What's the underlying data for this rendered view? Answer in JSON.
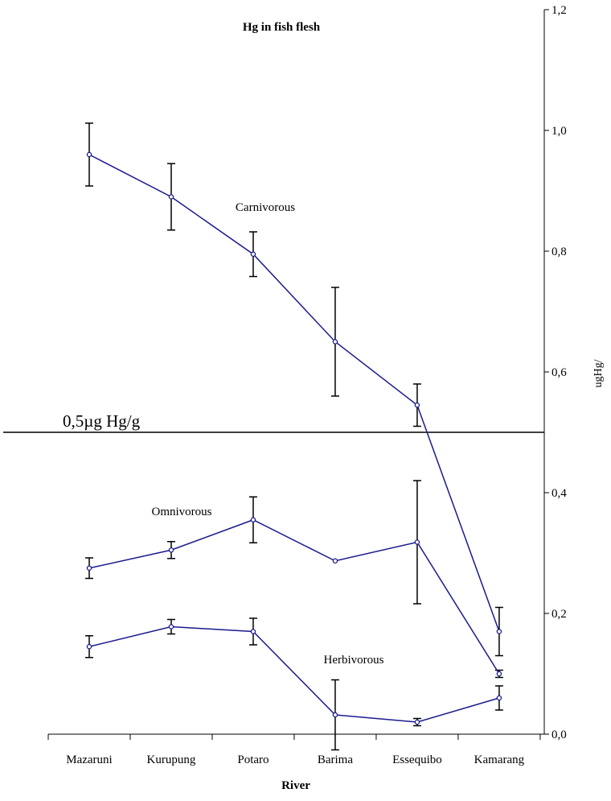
{
  "chart_data": {
    "type": "line",
    "title": "Hg in fish flesh",
    "xlabel": "River",
    "ylabel": "ugHg/",
    "categories": [
      "Mazaruni",
      "Kurupung",
      "Potaro",
      "Barima",
      "Essequibo",
      "Kamarang"
    ],
    "ylim": [
      0,
      1.2
    ],
    "yticks": [
      "0,0",
      "0,2",
      "0,4",
      "0,6",
      "0,8",
      "1,0",
      "1,2"
    ],
    "ytick_values": [
      0,
      0.2,
      0.4,
      0.6,
      0.8,
      1.0,
      1.2
    ],
    "y_axis_position": "right",
    "grid": false,
    "line_color": "#1a1a8c",
    "errorbar_color": "#000000",
    "reference_line": {
      "value": 0.5,
      "label": "0,5µg Hg/g"
    },
    "series": [
      {
        "name": "Carnivorous",
        "values": [
          0.96,
          0.89,
          0.795,
          0.65,
          0.545,
          0.17
        ],
        "errors": [
          0.052,
          0.055,
          0.037,
          0.09,
          0.035,
          0.04
        ]
      },
      {
        "name": "Omnivorous",
        "values": [
          0.275,
          0.305,
          0.355,
          0.287,
          0.318,
          0.1
        ],
        "errors": [
          0.017,
          0.014,
          0.038,
          0.0,
          0.102,
          0.006
        ]
      },
      {
        "name": "Herbivorous",
        "values": [
          0.145,
          0.178,
          0.17,
          0.032,
          0.02,
          0.06
        ],
        "errors": [
          0.018,
          0.012,
          0.022,
          0.058,
          0.006,
          0.02
        ]
      }
    ]
  }
}
